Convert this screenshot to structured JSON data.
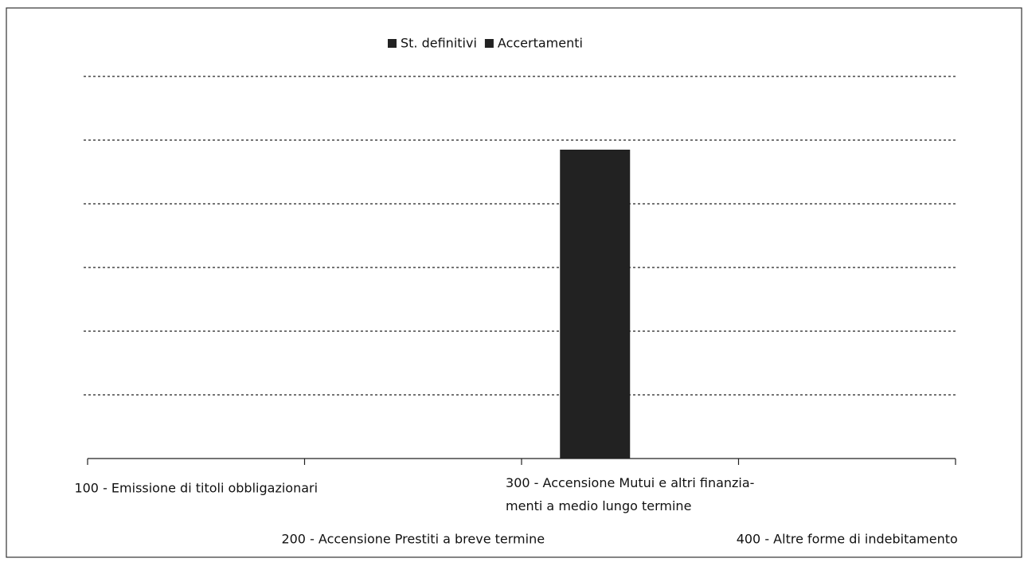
{
  "chart_data": {
    "type": "bar",
    "categories": [
      "100 - Emissione di titoli obbligazionari",
      "200 - Accensione Prestiti a breve termine",
      "300 - Accensione Mutui e altri finanzia-\nmenti a medio lungo termine",
      "400 - Altre forme di indebitamento"
    ],
    "series": [
      {
        "name": "St. definitivi",
        "color": "#222222",
        "values": [
          0,
          0,
          4.85,
          0
        ]
      },
      {
        "name": "Accertamenti",
        "color": "#222222",
        "values": [
          0,
          0,
          0,
          0
        ]
      }
    ],
    "ylim": [
      0,
      6
    ],
    "yticks": [
      1,
      2,
      3,
      4,
      5,
      6
    ],
    "grid": true,
    "legend": "top"
  }
}
